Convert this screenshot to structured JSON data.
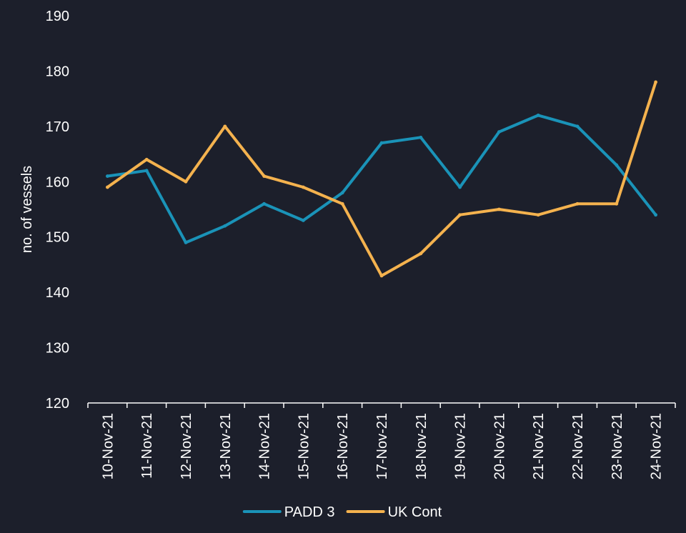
{
  "chart_data": {
    "type": "line",
    "title": "",
    "xlabel": "",
    "ylabel": "no. of vessels",
    "ylim": [
      120,
      190
    ],
    "yticks": [
      120,
      130,
      140,
      150,
      160,
      170,
      180,
      190
    ],
    "grid": false,
    "legend_position": "bottom",
    "categories": [
      "10-Nov-21",
      "11-Nov-21",
      "12-Nov-21",
      "13-Nov-21",
      "14-Nov-21",
      "15-Nov-21",
      "16-Nov-21",
      "17-Nov-21",
      "18-Nov-21",
      "19-Nov-21",
      "20-Nov-21",
      "21-Nov-21",
      "22-Nov-21",
      "23-Nov-21",
      "24-Nov-21"
    ],
    "series": [
      {
        "name": "PADD 3",
        "color": "#1a93b8",
        "values": [
          161,
          162,
          149,
          152,
          156,
          153,
          158,
          167,
          168,
          159,
          169,
          172,
          170,
          163,
          154
        ]
      },
      {
        "name": "UK Cont",
        "color": "#f4b24e",
        "values": [
          159,
          164,
          160,
          170,
          161,
          159,
          156,
          143,
          147,
          154,
          155,
          154,
          156,
          156,
          178
        ]
      }
    ]
  }
}
